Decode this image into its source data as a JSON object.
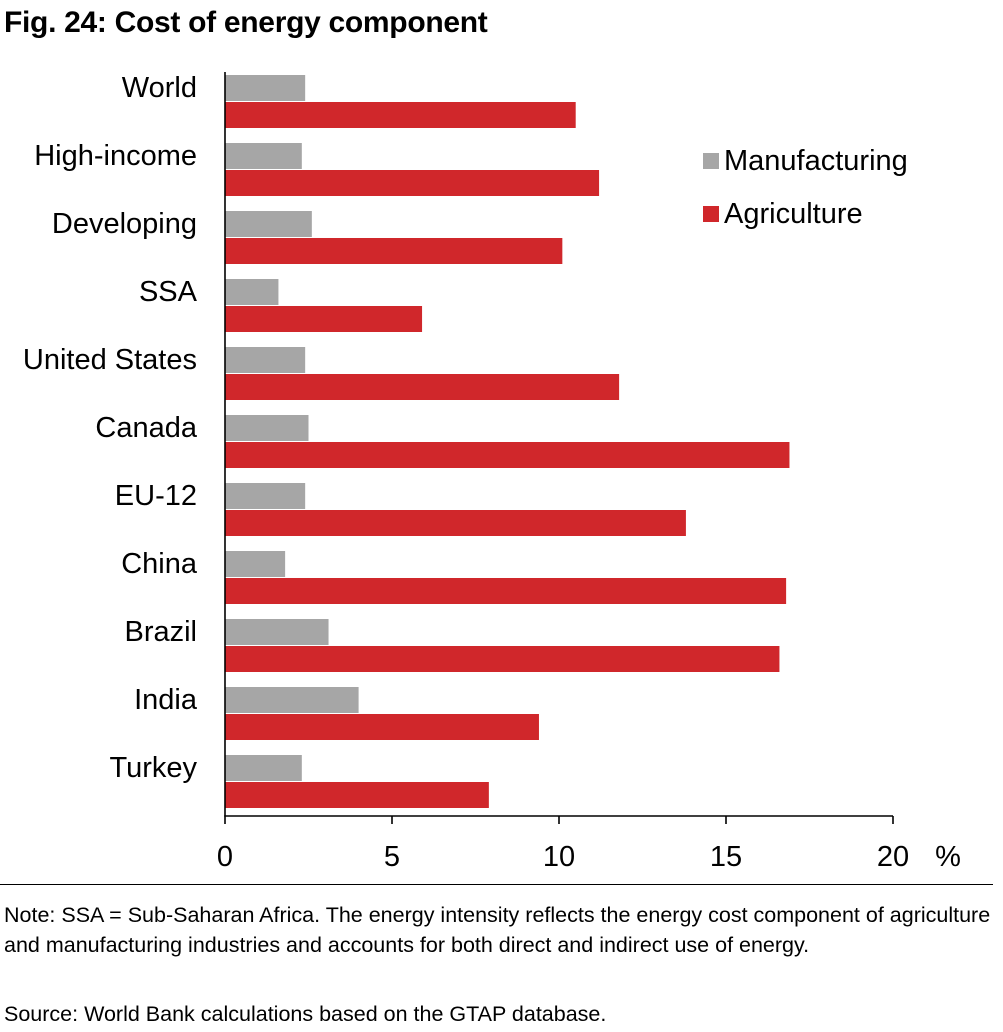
{
  "title": "Fig. 24: Cost of energy component",
  "note": "Note: SSA = Sub-Saharan Africa. The energy intensity reflects the energy cost component of agriculture and manufacturing industries and accounts for both direct and indirect use of energy.",
  "source": "Source: World Bank calculations based on the GTAP database.",
  "chart_data": {
    "type": "bar",
    "orientation": "horizontal",
    "title": "Fig. 24: Cost of energy component",
    "categories": [
      "World",
      "High-income",
      "Developing",
      "SSA",
      "United States",
      "Canada",
      "EU-12",
      "China",
      "Brazil",
      "India",
      "Turkey"
    ],
    "series": [
      {
        "name": "Manufacturing",
        "color": "#a6a6a6",
        "values": [
          2.4,
          2.3,
          2.6,
          1.6,
          2.4,
          2.5,
          2.4,
          1.8,
          3.1,
          4.0,
          2.3
        ]
      },
      {
        "name": "Agriculture",
        "color": "#d0272b",
        "values": [
          10.5,
          11.2,
          10.1,
          5.9,
          11.8,
          16.9,
          13.8,
          16.8,
          16.6,
          9.4,
          7.9
        ]
      }
    ],
    "xlim": [
      0,
      20
    ],
    "xticks": [
      "0",
      "5",
      "10",
      "15",
      "20"
    ],
    "xunit": "%",
    "xlabel": "",
    "ylabel": "",
    "legend_position": "top-right",
    "grid": false
  }
}
